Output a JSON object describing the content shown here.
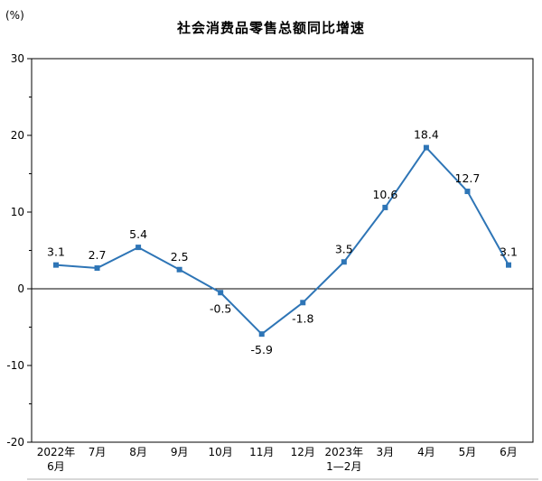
{
  "chart_data": {
    "type": "line",
    "title": "社会消费品零售总额同比增速",
    "unit_label": "(%)",
    "categories": [
      [
        "2022年",
        "6月"
      ],
      "7月",
      "8月",
      "9月",
      "10月",
      "11月",
      "12月",
      [
        "2023年",
        "1—2月"
      ],
      "3月",
      "4月",
      "5月",
      "6月"
    ],
    "values": [
      3.1,
      2.7,
      5.4,
      2.5,
      -0.5,
      -5.9,
      -1.8,
      3.5,
      10.6,
      18.4,
      12.7,
      3.1
    ],
    "ylabel": "",
    "xlabel": "",
    "ylim": [
      -20,
      30
    ],
    "ytick_major_interval": 10,
    "ytick_minor_interval": 5,
    "ytick_labels": [
      "-20",
      "-10",
      "0",
      "10",
      "20",
      "30"
    ],
    "line_color": "#2E75B6",
    "marker": "square",
    "label_color": "#000000",
    "axis_color": "#000000",
    "grid": false,
    "legend_position": "none"
  }
}
